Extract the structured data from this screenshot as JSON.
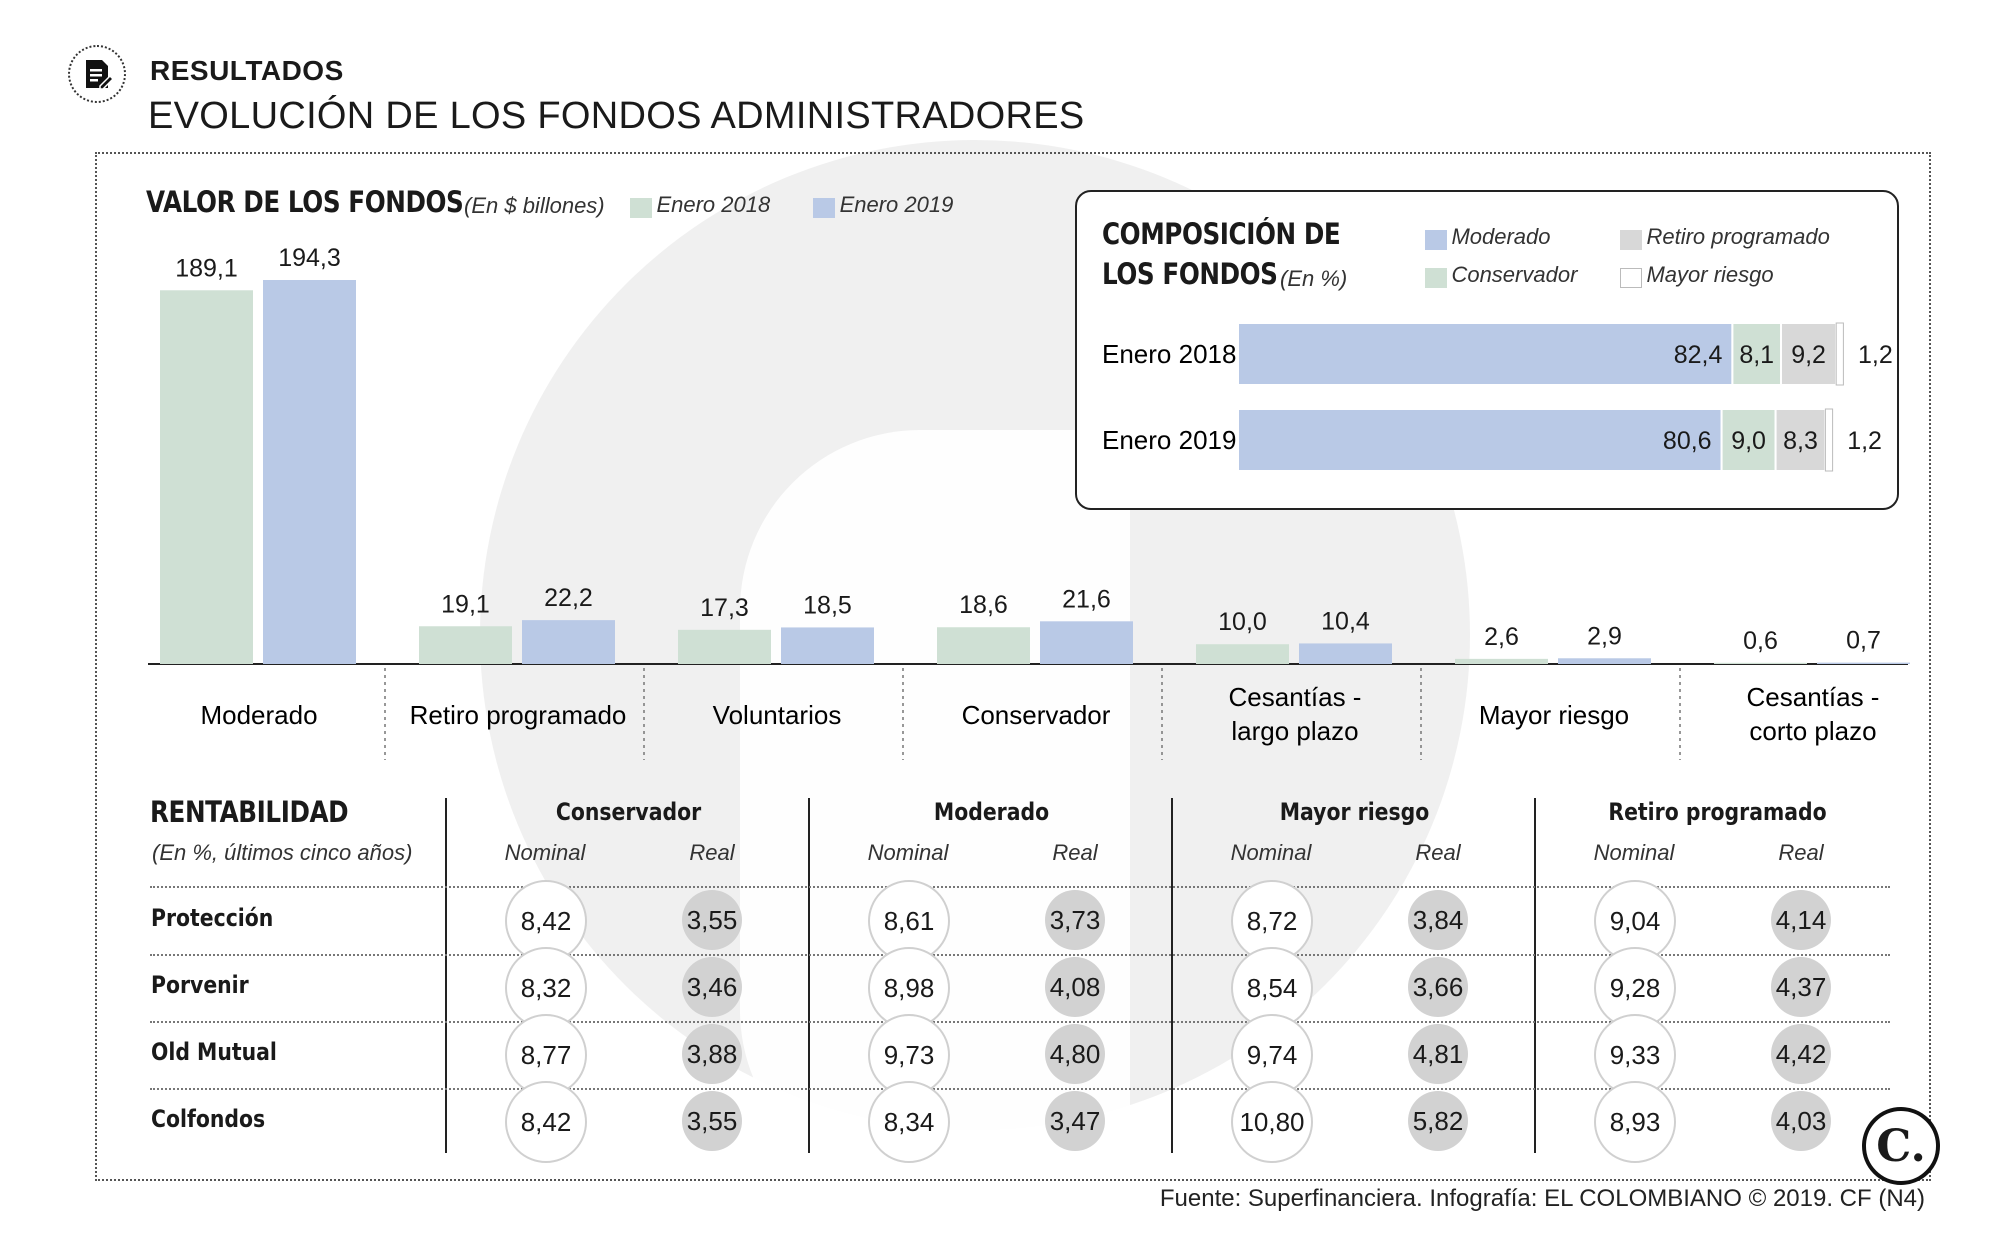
{
  "header": {
    "label": "RESULTADOS",
    "title": "EVOLUCIÓN DE LOS FONDOS ADMINISTRADORES"
  },
  "colors": {
    "enero_2018": "#cfe0d4",
    "enero_2019": "#b9c9e6",
    "moderado": "#b9c9e6",
    "conservador": "#cfe0d4",
    "retiro_programado": "#d8d8d8",
    "mayor_riesgo": "#ffffff",
    "real_circle": "#d2d2d2"
  },
  "chart_data": [
    {
      "type": "bar",
      "title": "VALOR DE LOS FONDOS",
      "unit": "(En $ billones)",
      "categories": [
        "Moderado",
        "Retiro programado",
        "Voluntarios",
        "Conservador",
        "Cesantías - largo plazo",
        "Mayor riesgo",
        "Cesantías - corto plazo"
      ],
      "series": [
        {
          "name": "Enero 2018",
          "values": [
            189.1,
            19.1,
            17.3,
            18.6,
            10.0,
            2.6,
            0.6
          ],
          "labels": [
            "189,1",
            "19,1",
            "17,3",
            "18,6",
            "10,0",
            "2,6",
            "0,6"
          ]
        },
        {
          "name": "Enero 2019",
          "values": [
            194.3,
            22.2,
            18.5,
            21.6,
            10.4,
            2.9,
            0.7
          ],
          "labels": [
            "194,3",
            "22,2",
            "18,5",
            "21,6",
            "10,4",
            "2,9",
            "0,7"
          ]
        }
      ],
      "ylim": [
        0,
        194.3
      ]
    },
    {
      "type": "bar",
      "orientation": "horizontal-stacked",
      "title_line1": "COMPOSICIÓN DE",
      "title_line2": "LOS FONDOS",
      "unit": "(En %)",
      "legend": [
        "Moderado",
        "Conservador",
        "Retiro programado",
        "Mayor riesgo"
      ],
      "categories": [
        "Enero 2018",
        "Enero 2019"
      ],
      "series": [
        {
          "name": "Moderado",
          "values": [
            82.4,
            80.6
          ],
          "labels": [
            "82,4",
            "80,6"
          ]
        },
        {
          "name": "Conservador",
          "values": [
            8.1,
            9.0
          ],
          "labels": [
            "8,1",
            "9,0"
          ]
        },
        {
          "name": "Retiro programado",
          "values": [
            9.2,
            8.3
          ],
          "labels": [
            "9,2",
            "8,3"
          ]
        },
        {
          "name": "Mayor riesgo",
          "values": [
            1.2,
            1.2
          ],
          "labels": [
            "1,2",
            "1,2"
          ]
        }
      ]
    },
    {
      "type": "table",
      "title": "RENTABILIDAD",
      "subtitle": "(En %, últimos cinco años)",
      "groups": [
        "Conservador",
        "Moderado",
        "Mayor riesgo",
        "Retiro programado"
      ],
      "subheaders": [
        "Nominal",
        "Real"
      ],
      "rows": [
        {
          "name": "Protección",
          "values": [
            "8,42",
            "3,55",
            "8,61",
            "3,73",
            "8,72",
            "3,84",
            "9,04",
            "4,14"
          ]
        },
        {
          "name": "Porvenir",
          "values": [
            "8,32",
            "3,46",
            "8,98",
            "4,08",
            "8,54",
            "3,66",
            "9,28",
            "4,37"
          ]
        },
        {
          "name": "Old Mutual",
          "values": [
            "8,77",
            "3,88",
            "9,73",
            "4,80",
            "9,74",
            "4,81",
            "9,33",
            "4,42"
          ]
        },
        {
          "name": "Colfondos",
          "values": [
            "8,42",
            "3,55",
            "8,34",
            "3,47",
            "10,80",
            "5,82",
            "8,93",
            "4,03"
          ]
        }
      ]
    }
  ],
  "footer": "Fuente: Superfinanciera. Infografía: EL COLOMBIANO © 2019. CF (N4)",
  "logo": "C."
}
